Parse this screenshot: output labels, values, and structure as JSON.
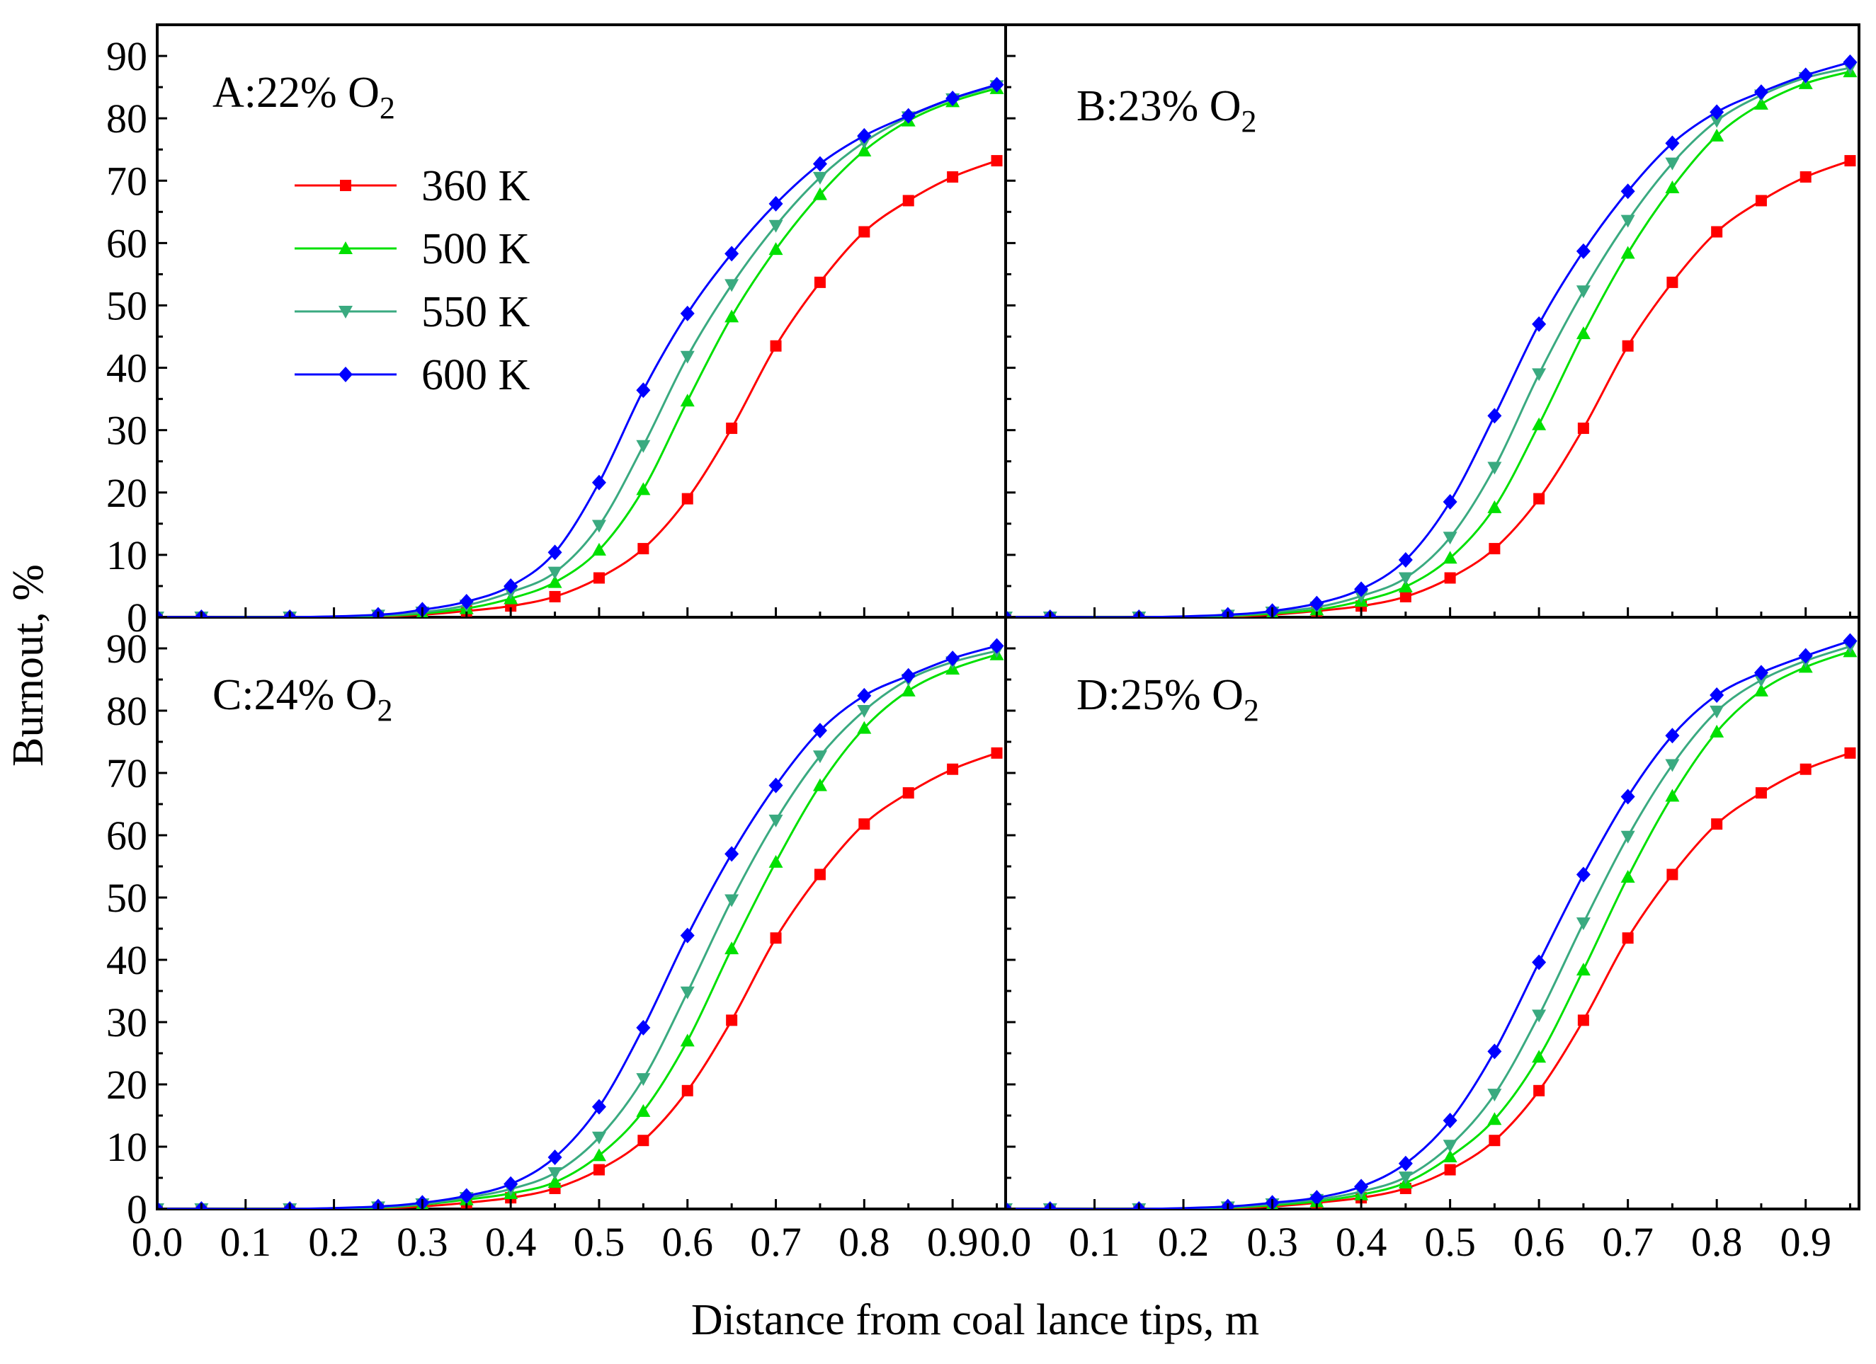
{
  "chart_data": {
    "type": "line",
    "layout": "2x2 panels sharing axes",
    "xlabel": "Distance from coal lance tips, m",
    "ylabel": "Burnout, %",
    "xlim": [
      0.0,
      0.96
    ],
    "ylim": [
      0,
      95
    ],
    "xticks": [
      "0.0",
      "0.1",
      "0.2",
      "0.3",
      "0.4",
      "0.5",
      "0.6",
      "0.7",
      "0.8",
      "0.9"
    ],
    "yticks": [
      "0",
      "10",
      "20",
      "30",
      "40",
      "50",
      "60",
      "70",
      "80",
      "90"
    ],
    "x": [
      0.0,
      0.05,
      0.15,
      0.25,
      0.3,
      0.35,
      0.4,
      0.45,
      0.5,
      0.55,
      0.6,
      0.65,
      0.7,
      0.75,
      0.8,
      0.85,
      0.9,
      0.95
    ],
    "legend": {
      "placement": "upper-left of panel A",
      "entries": [
        {
          "label": "360 K",
          "color": "#ff0000",
          "marker": "square"
        },
        {
          "label": "500 K",
          "color": "#00e000",
          "marker": "triangle-up"
        },
        {
          "label": "550 K",
          "color": "#3aaa80",
          "marker": "triangle-down"
        },
        {
          "label": "600 K",
          "color": "#0000ff",
          "marker": "diamond"
        }
      ]
    },
    "panels": [
      {
        "id": "A",
        "label_main": "A:22% O",
        "label_sub": "2",
        "series": [
          {
            "name": "360 K",
            "values": [
              0,
              0,
              0,
              0.1,
              0.4,
              1.0,
              1.8,
              3.3,
              6.3,
              11.0,
              19.0,
              30.3,
              43.5,
              53.7,
              61.8,
              66.8,
              70.6,
              73.2
            ]
          },
          {
            "name": "500 K",
            "values": [
              0,
              0,
              0,
              0.2,
              0.6,
              1.4,
              3.0,
              5.6,
              10.8,
              20.5,
              34.7,
              48.2,
              59.0,
              67.8,
              74.8,
              79.6,
              82.7,
              84.8
            ]
          },
          {
            "name": "550 K",
            "values": [
              0,
              0,
              0,
              0.3,
              0.8,
              1.9,
              4.0,
              7.2,
              14.7,
              27.5,
              41.8,
              53.3,
              62.8,
              70.5,
              76.2,
              80.2,
              83.1,
              85.2
            ]
          },
          {
            "name": "600 K",
            "values": [
              0,
              0,
              0,
              0.4,
              1.2,
              2.5,
              5.0,
              10.4,
              21.6,
              36.4,
              48.7,
              58.3,
              66.3,
              72.7,
              77.2,
              80.4,
              83.2,
              85.4
            ]
          }
        ]
      },
      {
        "id": "B",
        "label_main": "B:23% O",
        "label_sub": "2",
        "series": [
          {
            "name": "360 K",
            "values": [
              0,
              0,
              0,
              0.1,
              0.4,
              1.0,
              1.8,
              3.3,
              6.3,
              11.0,
              19.0,
              30.3,
              43.5,
              53.7,
              61.8,
              66.8,
              70.6,
              73.2
            ]
          },
          {
            "name": "500 K",
            "values": [
              0,
              0,
              0,
              0.2,
              0.6,
              1.2,
              2.6,
              4.9,
              9.5,
              17.6,
              30.9,
              45.5,
              58.4,
              68.9,
              77.2,
              82.3,
              85.6,
              87.5
            ]
          },
          {
            "name": "550 K",
            "values": [
              0,
              0,
              0,
              0.3,
              0.8,
              1.6,
              3.4,
              6.3,
              12.8,
              24.0,
              39.0,
              52.3,
              63.6,
              72.8,
              79.6,
              83.7,
              86.5,
              88.1
            ]
          },
          {
            "name": "600 K",
            "values": [
              0,
              0,
              0,
              0.4,
              1.0,
              2.2,
              4.5,
              9.2,
              18.5,
              32.3,
              47.0,
              58.7,
              68.3,
              76.0,
              81.0,
              84.2,
              86.9,
              89.0
            ]
          }
        ]
      },
      {
        "id": "C",
        "label_main": "C:24% O",
        "label_sub": "2",
        "series": [
          {
            "name": "360 K",
            "values": [
              0,
              0,
              0,
              0.1,
              0.4,
              1.0,
              1.8,
              3.3,
              6.3,
              11.0,
              19.0,
              30.3,
              43.5,
              53.7,
              61.8,
              66.8,
              70.6,
              73.2
            ]
          },
          {
            "name": "500 K",
            "values": [
              0,
              0,
              0,
              0.2,
              0.7,
              1.5,
              2.5,
              4.3,
              8.6,
              15.7,
              27.0,
              41.8,
              55.7,
              68.0,
              77.2,
              83.2,
              86.7,
              89.0
            ]
          },
          {
            "name": "550 K",
            "values": [
              0,
              0,
              0,
              0.3,
              0.8,
              1.8,
              3.2,
              5.8,
              11.5,
              20.9,
              34.8,
              49.6,
              62.4,
              72.7,
              80.0,
              85.0,
              87.8,
              89.6
            ]
          },
          {
            "name": "600 K",
            "values": [
              0,
              0,
              0,
              0.4,
              1.0,
              2.1,
              4.0,
              8.3,
              16.4,
              29.1,
              43.9,
              57.0,
              68.0,
              76.8,
              82.4,
              85.6,
              88.4,
              90.4
            ]
          }
        ]
      },
      {
        "id": "D",
        "label_main": "D:25% O",
        "label_sub": "2",
        "series": [
          {
            "name": "360 K",
            "values": [
              0,
              0,
              0,
              0.1,
              0.4,
              1.0,
              1.8,
              3.3,
              6.3,
              11.0,
              19.0,
              30.3,
              43.5,
              53.7,
              61.8,
              66.8,
              70.6,
              73.2
            ]
          },
          {
            "name": "500 K",
            "values": [
              0,
              0,
              0,
              0.2,
              0.6,
              1.2,
              2.3,
              4.2,
              8.4,
              14.4,
              24.4,
              38.4,
              53.3,
              66.3,
              76.6,
              83.2,
              87.0,
              89.5
            ]
          },
          {
            "name": "550 K",
            "values": [
              0,
              0,
              0,
              0.3,
              0.8,
              1.5,
              2.8,
              5.1,
              10.2,
              18.4,
              31.1,
              45.9,
              59.8,
              71.3,
              79.9,
              84.9,
              88.0,
              90.3
            ]
          },
          {
            "name": "600 K",
            "values": [
              0,
              0,
              0,
              0.4,
              1.0,
              1.8,
              3.6,
              7.3,
              14.2,
              25.3,
              39.6,
              53.7,
              66.2,
              76.0,
              82.5,
              86.1,
              88.8,
              91.2
            ]
          }
        ]
      }
    ]
  }
}
